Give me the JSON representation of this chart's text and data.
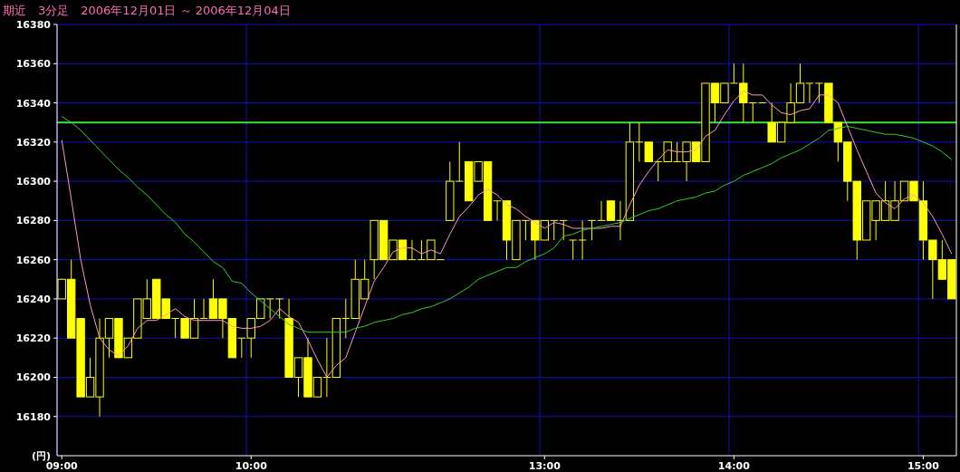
{
  "chart_data": {
    "type": "candlestick",
    "title": "期近　3分足　2006年12月01日 ～ 2006年12月04日",
    "ylabel": "(円)",
    "categories": [
      "09:00",
      null,
      null,
      null,
      null,
      null,
      null,
      null,
      null,
      null,
      null,
      null,
      null,
      null,
      null,
      null,
      null,
      null,
      null,
      null,
      "10:00",
      null,
      null,
      null,
      null,
      null,
      null,
      null,
      null,
      null,
      null,
      null,
      null,
      null,
      null,
      null,
      null,
      null,
      null,
      null,
      null,
      null,
      null,
      null,
      null,
      null,
      null,
      null,
      null,
      null,
      null,
      "13:00",
      null,
      null,
      null,
      null,
      null,
      null,
      null,
      null,
      null,
      null,
      null,
      null,
      null,
      null,
      null,
      null,
      null,
      null,
      null,
      "14:00",
      null,
      null,
      null,
      null,
      null,
      null,
      null,
      null,
      null,
      null,
      null,
      null,
      null,
      null,
      null,
      null,
      null,
      null,
      null,
      "15:00",
      null,
      null,
      null
    ],
    "color": "#ffff00",
    "ohlc": [
      [
        16240,
        16250,
        16240,
        16250
      ],
      [
        16250,
        16260,
        16220,
        16220
      ],
      [
        16230,
        16230,
        16190,
        16190
      ],
      [
        16190,
        16210,
        16190,
        16200
      ],
      [
        16190,
        16230,
        16180,
        16220
      ],
      [
        16220,
        16230,
        16210,
        16230
      ],
      [
        16230,
        16230,
        16210,
        16210
      ],
      [
        16210,
        16220,
        16210,
        16220
      ],
      [
        16220,
        16240,
        16220,
        16240
      ],
      [
        16230,
        16250,
        16230,
        16240
      ],
      [
        16250,
        16250,
        16230,
        16230
      ],
      [
        16240,
        16240,
        16230,
        16230
      ],
      [
        16230,
        16230,
        16220,
        16230
      ],
      [
        16230,
        16230,
        16220,
        16220
      ],
      [
        16220,
        16240,
        16220,
        16230
      ],
      [
        16230,
        16240,
        16230,
        16230
      ],
      [
        16240,
        16250,
        16230,
        16230
      ],
      [
        16240,
        16240,
        16220,
        16230
      ],
      [
        16230,
        16230,
        16210,
        16210
      ],
      [
        16220,
        16220,
        16210,
        16220
      ],
      [
        16220,
        16230,
        16210,
        16230
      ],
      [
        16230,
        16240,
        16230,
        16240
      ],
      [
        16240,
        16240,
        16230,
        16240
      ],
      [
        16240,
        16240,
        16230,
        16240
      ],
      [
        16230,
        16240,
        16200,
        16200
      ],
      [
        16200,
        16210,
        16190,
        16210
      ],
      [
        16210,
        16220,
        16190,
        16190
      ],
      [
        16190,
        16200,
        16190,
        16200
      ],
      [
        16200,
        16220,
        16190,
        16200
      ],
      [
        16200,
        16230,
        16200,
        16230
      ],
      [
        16230,
        16240,
        16220,
        16230
      ],
      [
        16230,
        16260,
        16230,
        16250
      ],
      [
        16240,
        16260,
        16240,
        16250
      ],
      [
        16260,
        16280,
        16250,
        16280
      ],
      [
        16280,
        16280,
        16260,
        16260
      ],
      [
        16260,
        16270,
        16260,
        16270
      ],
      [
        16270,
        16270,
        16260,
        16260
      ],
      [
        16260,
        16270,
        16260,
        16260
      ],
      [
        16260,
        16270,
        16260,
        16260
      ],
      [
        16260,
        16270,
        16260,
        16270
      ],
      [
        16260,
        16260,
        16260,
        16260
      ],
      [
        16280,
        16310,
        16280,
        16300
      ],
      [
        16300,
        16320,
        16300,
        16300
      ],
      [
        16310,
        16310,
        16290,
        16290
      ],
      [
        16300,
        16310,
        16300,
        16310
      ],
      [
        16310,
        16310,
        16280,
        16280
      ],
      [
        16290,
        16290,
        16280,
        16290
      ],
      [
        16290,
        16290,
        16260,
        16270
      ],
      [
        16260,
        16280,
        16260,
        16280
      ],
      [
        16280,
        16280,
        16270,
        16280
      ],
      [
        16280,
        16280,
        16260,
        16270
      ],
      [
        16270,
        16280,
        16270,
        16280
      ],
      [
        16280,
        16280,
        16270,
        16280
      ],
      [
        16280,
        16280,
        16270,
        16280
      ],
      [
        16270,
        16270,
        16260,
        16270
      ],
      [
        16270,
        16280,
        16260,
        16270
      ],
      [
        16280,
        16280,
        16270,
        16280
      ],
      [
        16280,
        16290,
        16280,
        16280
      ],
      [
        16290,
        16290,
        16280,
        16280
      ],
      [
        16280,
        16290,
        16270,
        16280
      ],
      [
        16280,
        16330,
        16280,
        16320
      ],
      [
        16320,
        16330,
        16310,
        16320
      ],
      [
        16320,
        16320,
        16310,
        16310
      ],
      [
        16310,
        16310,
        16300,
        16310
      ],
      [
        16310,
        16320,
        16310,
        16320
      ],
      [
        16310,
        16320,
        16310,
        16310
      ],
      [
        16310,
        16320,
        16300,
        16320
      ],
      [
        16320,
        16320,
        16310,
        16310
      ],
      [
        16310,
        16350,
        16310,
        16350
      ],
      [
        16350,
        16350,
        16330,
        16340
      ],
      [
        16340,
        16350,
        16340,
        16350
      ],
      [
        16350,
        16360,
        16350,
        16350
      ],
      [
        16350,
        16360,
        16330,
        16340
      ],
      [
        16340,
        16340,
        16330,
        16340
      ],
      [
        16340,
        16340,
        16340,
        16340
      ],
      [
        16330,
        16340,
        16320,
        16320
      ],
      [
        16320,
        16330,
        16320,
        16330
      ],
      [
        16330,
        16350,
        16330,
        16340
      ],
      [
        16340,
        16360,
        16340,
        16350
      ],
      [
        16350,
        16350,
        16340,
        16350
      ],
      [
        16350,
        16350,
        16340,
        16350
      ],
      [
        16350,
        16350,
        16330,
        16330
      ],
      [
        16330,
        16330,
        16310,
        16320
      ],
      [
        16320,
        16320,
        16290,
        16300
      ],
      [
        16300,
        16300,
        16260,
        16270
      ],
      [
        16270,
        16290,
        16270,
        16290
      ],
      [
        16280,
        16290,
        16270,
        16290
      ],
      [
        16280,
        16300,
        16280,
        16290
      ],
      [
        16280,
        16300,
        16280,
        16290
      ],
      [
        16290,
        16300,
        16290,
        16300
      ],
      [
        16300,
        16300,
        16290,
        16290
      ],
      [
        16290,
        16300,
        16260,
        16270
      ],
      [
        16270,
        16270,
        16240,
        16260
      ],
      [
        16260,
        16270,
        16250,
        16250
      ],
      [
        16260,
        16260,
        16240,
        16240
      ]
    ],
    "series": [
      {
        "type": "line",
        "color": "#ff99cc",
        "values": [
          16321,
          16291,
          16260,
          16237,
          16220,
          16214,
          16211,
          16216,
          16225,
          16229,
          16229,
          16232,
          16235,
          16231,
          16229,
          16229,
          16229,
          16229,
          16226,
          16225,
          16225,
          16226,
          16229,
          16235,
          16231,
          16228,
          16219,
          16209,
          16200,
          16206,
          16210,
          16223,
          16236,
          16249,
          16256,
          16264,
          16266,
          16266,
          16263,
          16265,
          16263,
          16273,
          16282,
          16287,
          16293,
          16296,
          16293,
          16288,
          16286,
          16282,
          16279,
          16276,
          16279,
          16278,
          16276,
          16276,
          16276,
          16276,
          16277,
          16277,
          16288,
          16298,
          16305,
          16311,
          16316,
          16315,
          16315,
          16316,
          16323,
          16326,
          16334,
          16341,
          16346,
          16344,
          16344,
          16339,
          16335,
          16334,
          16336,
          16337,
          16344,
          16344,
          16340,
          16328,
          16316,
          16305,
          16294,
          16289,
          16286,
          16291,
          16293,
          16289,
          16282,
          16273,
          16263
        ]
      },
      {
        "type": "line",
        "color": "#33cc33",
        "values": [
          16333,
          16330,
          16326,
          16321,
          16316,
          16311,
          16306,
          16302,
          16297,
          16293,
          16288,
          16283,
          16279,
          16273,
          16269,
          16264,
          16259,
          16256,
          16249,
          16248,
          16243,
          16239,
          16235,
          16231,
          16227,
          16225,
          16223,
          16223,
          16223,
          16223,
          16223,
          16225,
          16226,
          16228,
          16229,
          16230,
          16232,
          16233,
          16235,
          16236,
          16238,
          16240,
          16243,
          16246,
          16250,
          16252,
          16254,
          16256,
          16256,
          16259,
          16261,
          16263,
          16266,
          16272,
          16273,
          16275,
          16276,
          16277,
          16278,
          16279,
          16281,
          16283,
          16285,
          16286,
          16288,
          16290,
          16291,
          16292,
          16294,
          16295,
          16298,
          16300,
          16303,
          16305,
          16307,
          16309,
          16312,
          16314,
          16316,
          16319,
          16322,
          16326,
          16327,
          16328,
          16327,
          16326,
          16325,
          16324,
          16324,
          16323,
          16322,
          16320,
          16318,
          16315,
          16311
        ]
      }
    ],
    "ref_lines": [
      {
        "axis": "y",
        "value": 16330,
        "color": "#44dd44"
      }
    ],
    "ylim": [
      16160,
      16380
    ],
    "yticks": [
      16180,
      16200,
      16220,
      16240,
      16260,
      16280,
      16300,
      16320,
      16340,
      16360,
      16380
    ],
    "grid": true
  }
}
